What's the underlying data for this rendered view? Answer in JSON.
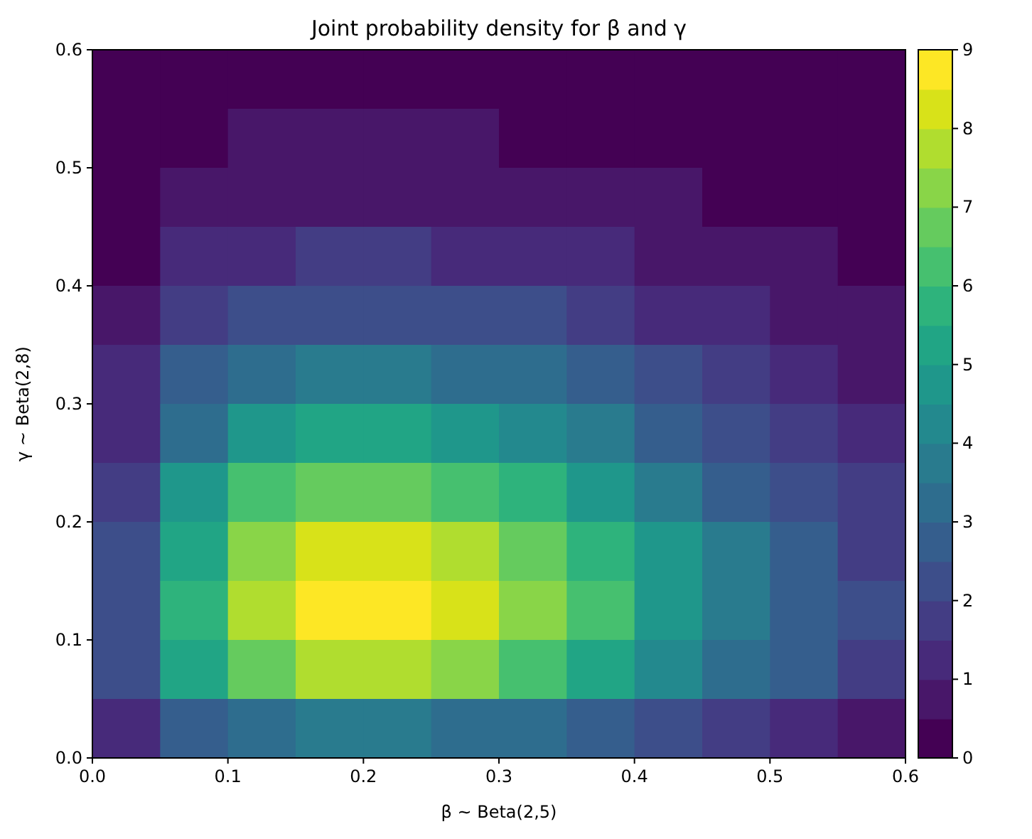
{
  "chart_data": {
    "type": "heatmap",
    "title": "Joint probability density for β and γ",
    "xlabel": "β ~ Beta(2,5)",
    "ylabel": "γ ~ Beta(2,8)",
    "xlim": [
      0,
      0.6
    ],
    "xticks": [
      {
        "value": 0,
        "label": "0.0"
      },
      0.1,
      0.2,
      0.3,
      0.4,
      0.5,
      0.6
    ],
    "ylim": [
      0,
      0.6
    ],
    "yticks": [
      {
        "value": 0,
        "label": "0.0"
      },
      0.1,
      0.2,
      0.3,
      0.4,
      0.5,
      0.6
    ],
    "clim": [
      0,
      9
    ],
    "cticks": [
      0,
      1,
      2,
      3,
      4,
      5,
      6,
      7,
      8,
      9
    ],
    "cells": [
      [
        0.1,
        0.2,
        0.2,
        0.3,
        0.3,
        0.2,
        0.2,
        0.2,
        0.1,
        0.1,
        0.1,
        0.1
      ],
      [
        0.1,
        0.3,
        0.5,
        0.5,
        0.5,
        0.5,
        0.4,
        0.4,
        0.3,
        0.2,
        0.2,
        0.1
      ],
      [
        0.3,
        0.6,
        0.8,
        0.9,
        0.9,
        0.9,
        0.8,
        0.6,
        0.5,
        0.4,
        0.3,
        0.2
      ],
      [
        0.4,
        1.0,
        1.4,
        1.5,
        1.5,
        1.4,
        1.3,
        1.1,
        0.9,
        0.7,
        0.5,
        0.4
      ],
      [
        0.7,
        1.7,
        2.2,
        2.4,
        2.4,
        2.3,
        2.0,
        1.7,
        1.4,
        1.1,
        0.8,
        0.6
      ],
      [
        1.0,
        2.5,
        3.3,
        3.6,
        3.6,
        3.4,
        3.0,
        2.6,
        2.1,
        1.6,
        1.2,
        0.8
      ],
      [
        1.4,
        3.4,
        4.6,
        5.1,
        5.1,
        4.8,
        4.2,
        3.6,
        2.9,
        2.3,
        1.7,
        1.2
      ],
      [
        1.8,
        4.5,
        6.0,
        6.6,
        6.6,
        6.2,
        5.5,
        4.7,
        3.8,
        2.9,
        2.2,
        1.5
      ],
      [
        2.2,
        5.4,
        7.2,
        8.0,
        8.0,
        7.5,
        6.6,
        5.6,
        4.6,
        3.5,
        2.6,
        1.8
      ],
      [
        2.4,
        5.8,
        7.8,
        8.6,
        8.6,
        8.1,
        7.2,
        6.1,
        4.9,
        3.8,
        2.8,
        2.0
      ],
      [
        2.1,
        5.2,
        6.9,
        7.6,
        7.6,
        7.1,
        6.3,
        5.4,
        4.4,
        3.4,
        2.5,
        1.8
      ],
      [
        1.0,
        2.5,
        3.3,
        3.7,
        3.7,
        3.4,
        3.1,
        2.6,
        2.1,
        1.6,
        1.2,
        0.8
      ]
    ]
  }
}
